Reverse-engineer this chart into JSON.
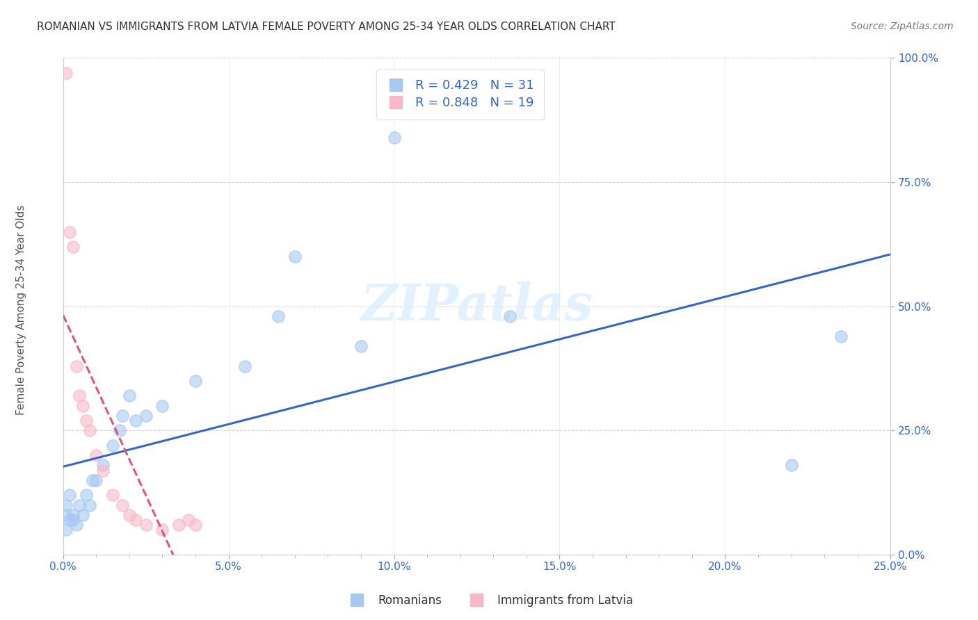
{
  "title": "ROMANIAN VS IMMIGRANTS FROM LATVIA FEMALE POVERTY AMONG 25-34 YEAR OLDS CORRELATION CHART",
  "source": "Source: ZipAtlas.com",
  "ylabel": "Female Poverty Among 25-34 Year Olds",
  "xlim": [
    0.0,
    0.25
  ],
  "ylim": [
    0.0,
    1.0
  ],
  "xtick_labels": [
    "0.0%",
    "",
    "",
    "",
    "",
    "5.0%",
    "",
    "",
    "",
    "",
    "10.0%",
    "",
    "",
    "",
    "",
    "15.0%",
    "",
    "",
    "",
    "",
    "20.0%",
    "",
    "",
    "",
    "",
    "25.0%"
  ],
  "xtick_values": [
    0.0,
    0.01,
    0.02,
    0.03,
    0.04,
    0.05,
    0.06,
    0.07,
    0.08,
    0.09,
    0.1,
    0.11,
    0.12,
    0.13,
    0.14,
    0.15,
    0.16,
    0.17,
    0.18,
    0.19,
    0.2,
    0.21,
    0.22,
    0.23,
    0.24,
    0.25
  ],
  "ytick_labels": [
    "0.0%",
    "25.0%",
    "50.0%",
    "75.0%",
    "100.0%"
  ],
  "ytick_values": [
    0.0,
    0.25,
    0.5,
    0.75,
    1.0
  ],
  "romanians_x": [
    0.001,
    0.001,
    0.001,
    0.002,
    0.002,
    0.003,
    0.003,
    0.004,
    0.005,
    0.006,
    0.007,
    0.008,
    0.009,
    0.01,
    0.012,
    0.015,
    0.017,
    0.018,
    0.02,
    0.022,
    0.025,
    0.03,
    0.04,
    0.055,
    0.065,
    0.07,
    0.09,
    0.1,
    0.135,
    0.22,
    0.235
  ],
  "romanians_y": [
    0.05,
    0.08,
    0.1,
    0.07,
    0.12,
    0.07,
    0.08,
    0.06,
    0.1,
    0.08,
    0.12,
    0.1,
    0.15,
    0.15,
    0.18,
    0.22,
    0.25,
    0.28,
    0.32,
    0.27,
    0.28,
    0.3,
    0.35,
    0.38,
    0.48,
    0.6,
    0.42,
    0.84,
    0.48,
    0.18,
    0.44
  ],
  "latvia_x": [
    0.001,
    0.002,
    0.003,
    0.004,
    0.005,
    0.006,
    0.007,
    0.008,
    0.01,
    0.012,
    0.015,
    0.018,
    0.02,
    0.022,
    0.025,
    0.03,
    0.035,
    0.038,
    0.04
  ],
  "latvia_y": [
    0.97,
    0.65,
    0.62,
    0.38,
    0.32,
    0.3,
    0.27,
    0.25,
    0.2,
    0.17,
    0.12,
    0.1,
    0.08,
    0.07,
    0.06,
    0.05,
    0.06,
    0.07,
    0.06
  ],
  "blue_scatter_color": "#a8c8f0",
  "pink_scatter_color": "#f8b8c8",
  "blue_line_color": "#3366cc",
  "pink_line_color": "#e8507a",
  "r_romanian": 0.429,
  "n_romanian": 31,
  "r_latvia": 0.848,
  "n_latvia": 19,
  "legend_text_color": "#3366cc",
  "watermark_text": "ZIPatlas",
  "watermark_color": "#ddeeff",
  "axis_label_color": "#3366cc",
  "tick_label_color": "#3366cc",
  "background_color": "#ffffff",
  "grid_color": "#cccccc",
  "title_color": "#333333",
  "source_color": "#777777",
  "ylabel_color": "#555555"
}
